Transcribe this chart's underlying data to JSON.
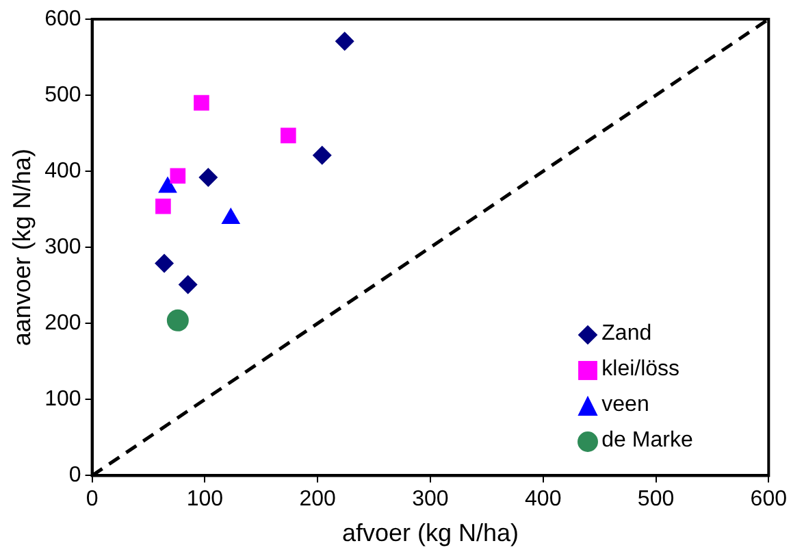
{
  "chart_data": {
    "type": "scatter",
    "xlabel": "afvoer (kg N/ha)",
    "ylabel": "aanvoer (kg N/ha)",
    "xlim": [
      0,
      600
    ],
    "ylim": [
      0,
      600
    ],
    "xticks": [
      0,
      100,
      200,
      300,
      400,
      500,
      600
    ],
    "yticks": [
      0,
      100,
      200,
      300,
      400,
      500,
      600
    ],
    "grid": false,
    "legend": "bottom right",
    "series": [
      {
        "name": "Zand",
        "color": "#000080",
        "marker": "diamond",
        "x": [
          224,
          204,
          103,
          64,
          85
        ],
        "values": [
          571,
          421,
          392,
          279,
          251
        ]
      },
      {
        "name": "klei/löss",
        "color": "#ff00ff",
        "marker": "square",
        "x": [
          97,
          174,
          76,
          63
        ],
        "values": [
          490,
          447,
          394,
          354
        ]
      },
      {
        "name": "veen",
        "color": "#0000ff",
        "marker": "triangle",
        "x": [
          67,
          123
        ],
        "values": [
          379,
          338
        ]
      },
      {
        "name": "de Marke",
        "color": "#2e8b57",
        "marker": "circle",
        "x": [
          76
        ],
        "values": [
          204
        ]
      },
      {
        "type": "line",
        "color": "#000000",
        "marker": "none",
        "line_style": "dashed",
        "x": [
          0,
          600
        ],
        "values": [
          0,
          600
        ]
      }
    ]
  }
}
